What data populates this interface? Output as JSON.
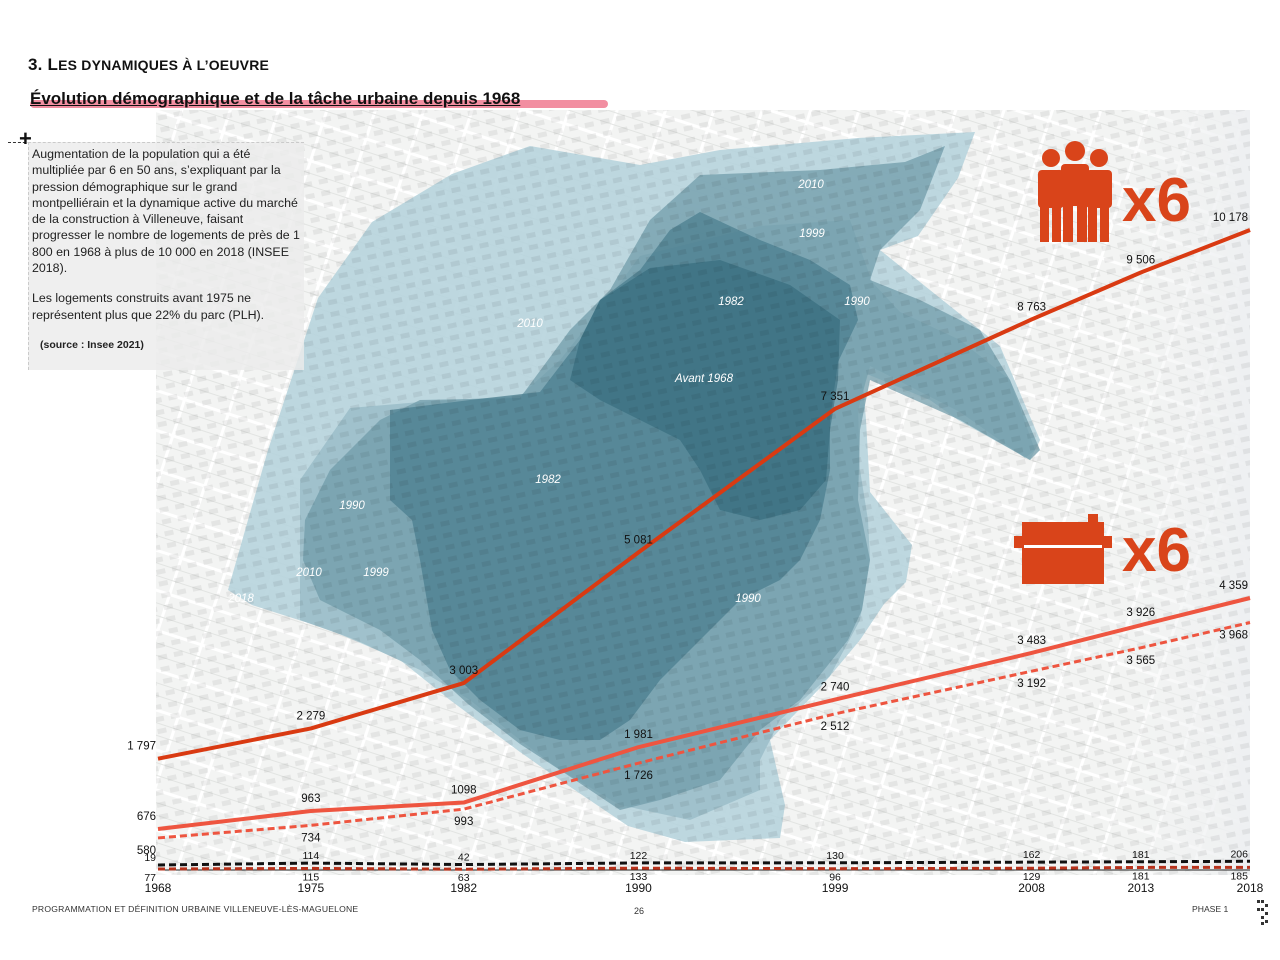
{
  "header": {
    "section_title_prefix": "3. L",
    "section_title_rest": "ES DYNAMIQUES À L’OEUVRE",
    "subtitle": "Évolution démographique et de la tâche urbaine depuis 1968"
  },
  "textbox": {
    "paragraph1": "Augmentation de la population qui a été multipliée par 6 en 50 ans, s’expliquant par la pression démographique sur le grand montpelliérain et la dynamique active du marché de la construction à Villeneuve, faisant progresser le nombre de logements de près de 1 800 en 1968 à plus de 10 000 en 2018 (INSEE 2018).",
    "paragraph2": "Les logements construits avant 1975 ne représentent plus que 22% du parc (PLH).",
    "source": "(source : Insee 2021)"
  },
  "map_labels": [
    "Avant 1968",
    "1982",
    "1982",
    "1990",
    "1990",
    "1990",
    "1999",
    "1999",
    "2010",
    "2010",
    "2010",
    "2018"
  ],
  "multipliers": {
    "population": "x6",
    "housing": "x6"
  },
  "icons": {
    "population": "people-group-icon",
    "housing": "house-icon"
  },
  "colors": {
    "population_line": "#d93a12",
    "housing_line": "#ee5540",
    "small_line_black": "#111111",
    "small_line_red": "#b8321b",
    "urban_before1968": "#2f6678",
    "urban_1982": "#4a7d8e",
    "urban_1990": "#6e9aa8",
    "urban_1999": "#9cbfca",
    "urban_2010": "#b5d3dc"
  },
  "chart_data": {
    "type": "line",
    "x": [
      1968,
      1975,
      1982,
      1990,
      1999,
      2008,
      2013,
      2018
    ],
    "xlim": [
      1968,
      2018
    ],
    "ylim": [
      0,
      10500
    ],
    "series": [
      {
        "key": "pop",
        "style": "solid",
        "color": "#d93a12",
        "width": 4,
        "labelPos": "above",
        "values": [
          1797,
          2279,
          3003,
          5081,
          7351,
          8763,
          9506,
          10178
        ],
        "labels": [
          "1 797",
          "2 279",
          "3 003",
          "5 081",
          "7 351",
          "8 763",
          "9 506",
          "10 178"
        ]
      },
      {
        "key": "housing-total",
        "style": "solid",
        "color": "#ee5540",
        "width": 4,
        "labelPos": "above",
        "values": [
          676,
          963,
          1098,
          1981,
          2740,
          3483,
          3926,
          4359
        ],
        "labels": [
          "676",
          "963",
          "1098",
          "1 981",
          "2 740",
          "3 483",
          "3 926",
          "4 359"
        ]
      },
      {
        "key": "housing-main",
        "style": "dashed",
        "color": "#ee5540",
        "width": 3,
        "labelPos": "below",
        "values": [
          580,
          734,
          993,
          1726,
          2512,
          3192,
          3565,
          3968
        ],
        "labels": [
          "580",
          "734",
          "993",
          "1 726",
          "2 512",
          "3 192",
          "3 565",
          "3 968"
        ]
      },
      {
        "key": "small-a",
        "style": "dashed",
        "color": "#111111",
        "width": 3,
        "labelPos": "above",
        "values": [
          19,
          114,
          42,
          122,
          130,
          162,
          181,
          206
        ],
        "labels": [
          "19",
          "114",
          "42",
          "122",
          "130",
          "162",
          "181",
          "206"
        ]
      },
      {
        "key": "small-b",
        "style": "dashed",
        "color": "#b8321b",
        "width": 3,
        "labelPos": "below",
        "values": [
          77,
          115,
          63,
          133,
          96,
          129,
          181,
          185
        ],
        "labels": [
          "77",
          "115",
          "63",
          "133",
          "96",
          "129",
          "181",
          "185"
        ]
      }
    ]
  },
  "footer": {
    "left": "PROGRAMMATION ET DÉFINITION URBAINE   VILLENEUVE-LÈS-MAGUELONE",
    "page": "26",
    "phase": "PHASE 1"
  }
}
